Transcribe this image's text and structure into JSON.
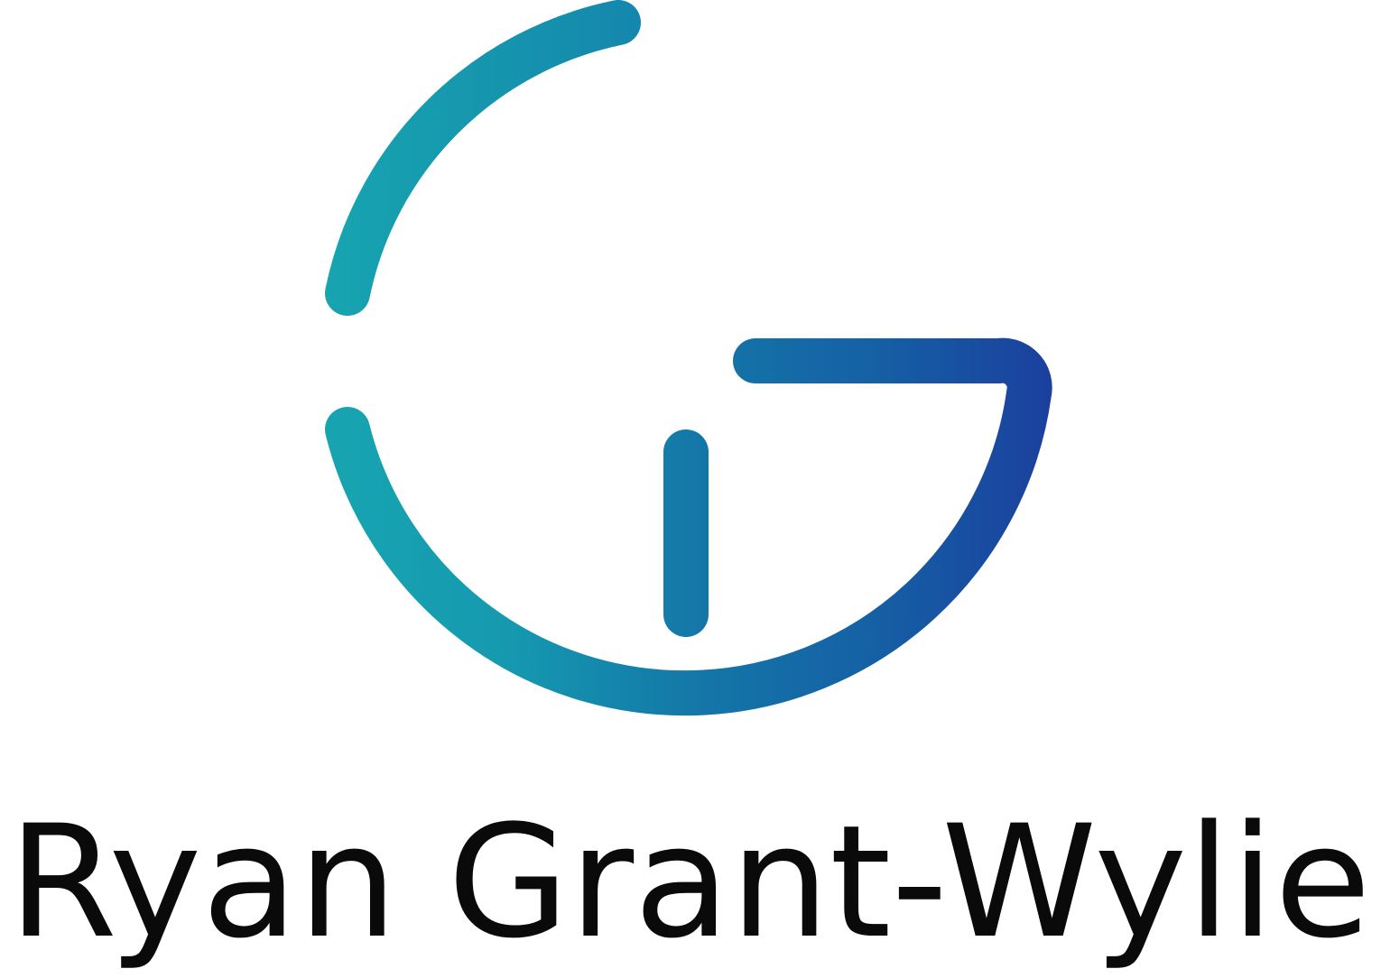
{
  "logo": {
    "name": "Ryan Grant-Wylie",
    "mark": "rg-monogram-icon",
    "colors": {
      "gradient_start": "#17a5b0",
      "gradient_mid": "#1478a8",
      "gradient_end": "#1b3f9d",
      "wordmark": "#0a0a0a"
    }
  }
}
